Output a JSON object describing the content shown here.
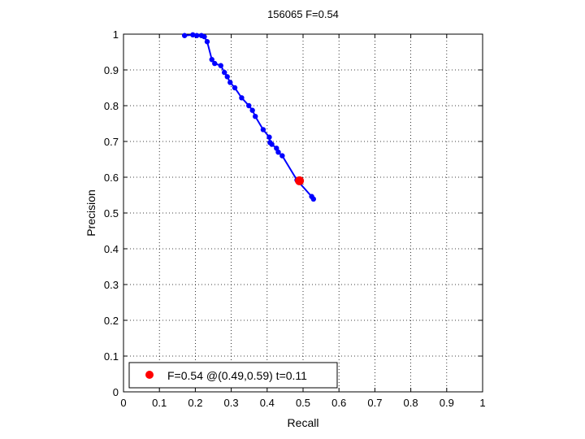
{
  "chart_data": {
    "type": "line",
    "title": "156065 F=0.54",
    "xlabel": "Recall",
    "ylabel": "Precision",
    "xlim": [
      0,
      1
    ],
    "ylim": [
      0,
      1
    ],
    "grid": true,
    "xticks": [
      "0",
      "0.1",
      "0.2",
      "0.3",
      "0.4",
      "0.5",
      "0.6",
      "0.7",
      "0.8",
      "0.9",
      "1"
    ],
    "yticks": [
      "0",
      "0.1",
      "0.2",
      "0.3",
      "0.4",
      "0.5",
      "0.6",
      "0.7",
      "0.8",
      "0.9",
      "1"
    ],
    "series": [
      {
        "color": "#0000ff",
        "marker": "dot",
        "x": [
          0.17,
          0.193,
          0.204,
          0.217,
          0.225,
          0.233,
          0.246,
          0.254,
          0.271,
          0.281,
          0.289,
          0.297,
          0.31,
          0.329,
          0.349,
          0.359,
          0.367,
          0.389,
          0.406,
          0.408,
          0.413,
          0.426,
          0.431,
          0.442,
          0.483,
          0.524,
          0.529
        ],
        "y": [
          0.996,
          0.998,
          0.996,
          0.996,
          0.993,
          0.979,
          0.929,
          0.918,
          0.912,
          0.893,
          0.881,
          0.865,
          0.85,
          0.822,
          0.8,
          0.787,
          0.77,
          0.733,
          0.712,
          0.697,
          0.692,
          0.681,
          0.67,
          0.66,
          0.592,
          0.546,
          0.539
        ]
      }
    ],
    "highlight_point": {
      "x": 0.49,
      "y": 0.59,
      "color": "#ff0000"
    },
    "legend": {
      "position": "bottom-left",
      "entries": [
        {
          "label": "F=0.54 @(0.49,0.59) t=0.11",
          "color": "#ff0000",
          "marker": "dot"
        }
      ]
    }
  }
}
